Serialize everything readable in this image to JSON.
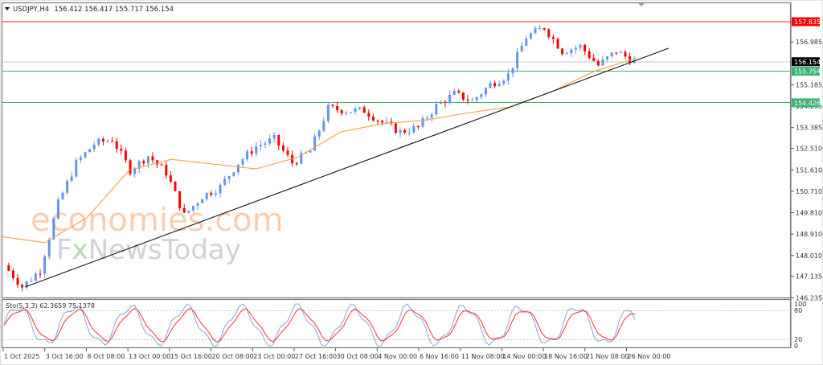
{
  "header": {
    "symbol_timeframe": "USDJPY,H4",
    "ohlc": "156.412 156.417 155.717 156.154",
    "dropdown_icon": "triangle-down-icon"
  },
  "watermark": {
    "line1": "economies.com",
    "line2_prefix": "F",
    "line2_x": "x",
    "line2_rest": "NewsToday"
  },
  "price_axis": {
    "ticks": [
      "156.985",
      "155.185",
      "154.295",
      "153.385",
      "152.510",
      "151.610",
      "150.710",
      "149.810",
      "148.910",
      "148.010",
      "147.135",
      "146.235"
    ],
    "labels": {
      "resistance": "157.835",
      "current": "156.154",
      "support1": "155.754",
      "support2": "154.426"
    }
  },
  "indicator": {
    "name": "Sto(5,3,3) 62.3659 75.1378",
    "levels": [
      "100",
      "80",
      "20",
      "0"
    ]
  },
  "time_axis": {
    "labels": [
      "1 Oct 2025",
      "3 Oct 16:00",
      "8 Oct 08:00",
      "13 Oct 00:00",
      "15 Oct 16:00",
      "20 Oct 08:00",
      "23 Oct 00:00",
      "27 Oct 16:00",
      "30 Oct 08:00",
      "4 Nov 00:00",
      "6 Nov 16:00",
      "11 Nov 08:00",
      "14 Nov 00:00",
      "18 Nov 16:00",
      "21 Nov 08:00",
      "26 Nov 00:00"
    ]
  },
  "colors": {
    "bull": "#6495ed",
    "bear": "#ff0000",
    "ma": "#f5a142",
    "trendline": "#000000",
    "resistance": "#ff0000",
    "support": "#3cb371",
    "current_line": "#c0c0c0",
    "sto_main": "#6f9fe8",
    "sto_signal": "#ff3030"
  },
  "chart_data": {
    "type": "candlestick",
    "title": "USDJPY,H4",
    "xlabel": "",
    "ylabel": "",
    "ylim": [
      146.235,
      158.2
    ],
    "last_ohlc": {
      "open": 156.412,
      "high": 156.417,
      "low": 155.717,
      "close": 156.154
    },
    "horizontal_levels": [
      {
        "name": "resistance",
        "value": 157.835,
        "color": "#ff0000"
      },
      {
        "name": "current_price",
        "value": 156.154,
        "color": "#c0c0c0"
      },
      {
        "name": "support_1",
        "value": 155.754,
        "color": "#3cb371"
      },
      {
        "name": "support_2",
        "value": 154.426,
        "color": "#3cb371"
      }
    ],
    "trendline": {
      "from": {
        "x": "1 Oct 2025",
        "y": 146.65
      },
      "to": {
        "x": "27 Nov",
        "y": 156.75
      }
    },
    "moving_average_approx": [
      {
        "x": "1 Oct 2025",
        "y": 148.8
      },
      {
        "x": "3 Oct 16:00",
        "y": 148.55
      },
      {
        "x": "8 Oct 08:00",
        "y": 149.6
      },
      {
        "x": "13 Oct 00:00",
        "y": 151.6
      },
      {
        "x": "15 Oct 16:00",
        "y": 152.05
      },
      {
        "x": "20 Oct 08:00",
        "y": 151.85
      },
      {
        "x": "23 Oct 00:00",
        "y": 151.65
      },
      {
        "x": "27 Oct 16:00",
        "y": 152.15
      },
      {
        "x": "30 Oct 08:00",
        "y": 153.2
      },
      {
        "x": "4 Nov 00:00",
        "y": 153.55
      },
      {
        "x": "6 Nov 16:00",
        "y": 153.7
      },
      {
        "x": "11 Nov 08:00",
        "y": 154.0
      },
      {
        "x": "14 Nov 00:00",
        "y": 154.25
      },
      {
        "x": "18 Nov 16:00",
        "y": 154.9
      },
      {
        "x": "21 Nov 08:00",
        "y": 155.75
      },
      {
        "x": "26 Nov 00:00",
        "y": 156.3
      }
    ],
    "price_path_approx": [
      {
        "x": "1 Oct 2025",
        "y": 147.6
      },
      {
        "x": "2 Oct",
        "y": 146.7
      },
      {
        "x": "3 Oct 16:00",
        "y": 147.4
      },
      {
        "x": "6 Oct",
        "y": 150.2
      },
      {
        "x": "7 Oct",
        "y": 151.9
      },
      {
        "x": "8 Oct 08:00",
        "y": 152.7
      },
      {
        "x": "10 Oct",
        "y": 152.9
      },
      {
        "x": "11 Oct",
        "y": 151.6
      },
      {
        "x": "13 Oct 00:00",
        "y": 152.2
      },
      {
        "x": "14 Oct",
        "y": 151.5
      },
      {
        "x": "15 Oct 16:00",
        "y": 149.7
      },
      {
        "x": "17 Oct",
        "y": 150.5
      },
      {
        "x": "20 Oct 08:00",
        "y": 150.9
      },
      {
        "x": "21 Oct",
        "y": 151.9
      },
      {
        "x": "23 Oct 00:00",
        "y": 152.6
      },
      {
        "x": "24 Oct",
        "y": 152.9
      },
      {
        "x": "27 Oct 16:00",
        "y": 151.9
      },
      {
        "x": "29 Oct",
        "y": 152.4
      },
      {
        "x": "30 Oct 08:00",
        "y": 154.2
      },
      {
        "x": "31 Oct",
        "y": 154.1
      },
      {
        "x": "4 Nov 00:00",
        "y": 154.1
      },
      {
        "x": "5 Nov",
        "y": 153.6
      },
      {
        "x": "6 Nov 16:00",
        "y": 153.2
      },
      {
        "x": "7 Nov",
        "y": 153.4
      },
      {
        "x": "11 Nov 08:00",
        "y": 154.3
      },
      {
        "x": "12 Nov",
        "y": 154.8
      },
      {
        "x": "14 Nov 00:00",
        "y": 154.5
      },
      {
        "x": "17 Nov",
        "y": 155.2
      },
      {
        "x": "18 Nov 16:00",
        "y": 155.6
      },
      {
        "x": "19 Nov",
        "y": 157.2
      },
      {
        "x": "20 Nov",
        "y": 157.6
      },
      {
        "x": "21 Nov 08:00",
        "y": 156.6
      },
      {
        "x": "24 Nov",
        "y": 156.8
      },
      {
        "x": "25 Nov",
        "y": 156.0
      },
      {
        "x": "26 Nov 00:00",
        "y": 156.6
      },
      {
        "x": "27 Nov",
        "y": 156.154
      }
    ],
    "subchart": {
      "type": "line",
      "name": "Stochastic Oscillator",
      "params": "5,3,3",
      "main_value": 62.3659,
      "signal_value": 75.1378,
      "ylim": [
        0,
        100
      ],
      "levels": [
        20,
        80
      ]
    },
    "grid": false,
    "legend_position": "top-left"
  }
}
